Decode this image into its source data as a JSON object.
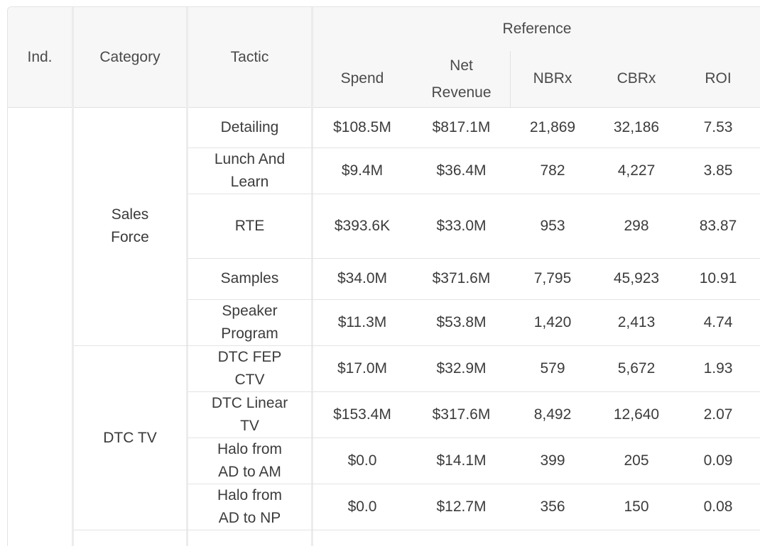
{
  "header": {
    "ind": "Ind.",
    "category": "Category",
    "tactic": "Tactic",
    "reference": "Reference",
    "spend": "Spend",
    "net_revenue_line1": "Net",
    "net_revenue_line2": "Revenue",
    "nbrx": "NBRx",
    "cbrx": "CBRx",
    "roi": "ROI"
  },
  "categories": {
    "sales_force_line1": "Sales",
    "sales_force_line2": "Force",
    "dtc_tv": "DTC TV"
  },
  "rows": [
    {
      "tactic1": "Detailing",
      "tactic2": "",
      "spend": "$108.5M",
      "net_revenue": "$817.1M",
      "nbrx": "21,869",
      "cbrx": "32,186",
      "roi": "7.53"
    },
    {
      "tactic1": "Lunch And",
      "tactic2": "Learn",
      "spend": "$9.4M",
      "net_revenue": "$36.4M",
      "nbrx": "782",
      "cbrx": "4,227",
      "roi": "3.85"
    },
    {
      "tactic1": "RTE",
      "tactic2": "",
      "spend": "$393.6K",
      "net_revenue": "$33.0M",
      "nbrx": "953",
      "cbrx": "298",
      "roi": "83.87"
    },
    {
      "tactic1": "Samples",
      "tactic2": "",
      "spend": "$34.0M",
      "net_revenue": "$371.6M",
      "nbrx": "7,795",
      "cbrx": "45,923",
      "roi": "10.91"
    },
    {
      "tactic1": "Speaker",
      "tactic2": "Program",
      "spend": "$11.3M",
      "net_revenue": "$53.8M",
      "nbrx": "1,420",
      "cbrx": "2,413",
      "roi": "4.74"
    },
    {
      "tactic1": "DTC FEP",
      "tactic2": "CTV",
      "spend": "$17.0M",
      "net_revenue": "$32.9M",
      "nbrx": "579",
      "cbrx": "5,672",
      "roi": "1.93"
    },
    {
      "tactic1": "DTC Linear",
      "tactic2": "TV",
      "spend": "$153.4M",
      "net_revenue": "$317.6M",
      "nbrx": "8,492",
      "cbrx": "12,640",
      "roi": "2.07"
    },
    {
      "tactic1": "Halo from",
      "tactic2": "AD to AM",
      "spend": "$0.0",
      "net_revenue": "$14.1M",
      "nbrx": "399",
      "cbrx": "205",
      "roi": "0.09"
    },
    {
      "tactic1": "Halo from",
      "tactic2": "AD to NP",
      "spend": "$0.0",
      "net_revenue": "$12.7M",
      "nbrx": "356",
      "cbrx": "150",
      "roi": "0.08"
    }
  ]
}
